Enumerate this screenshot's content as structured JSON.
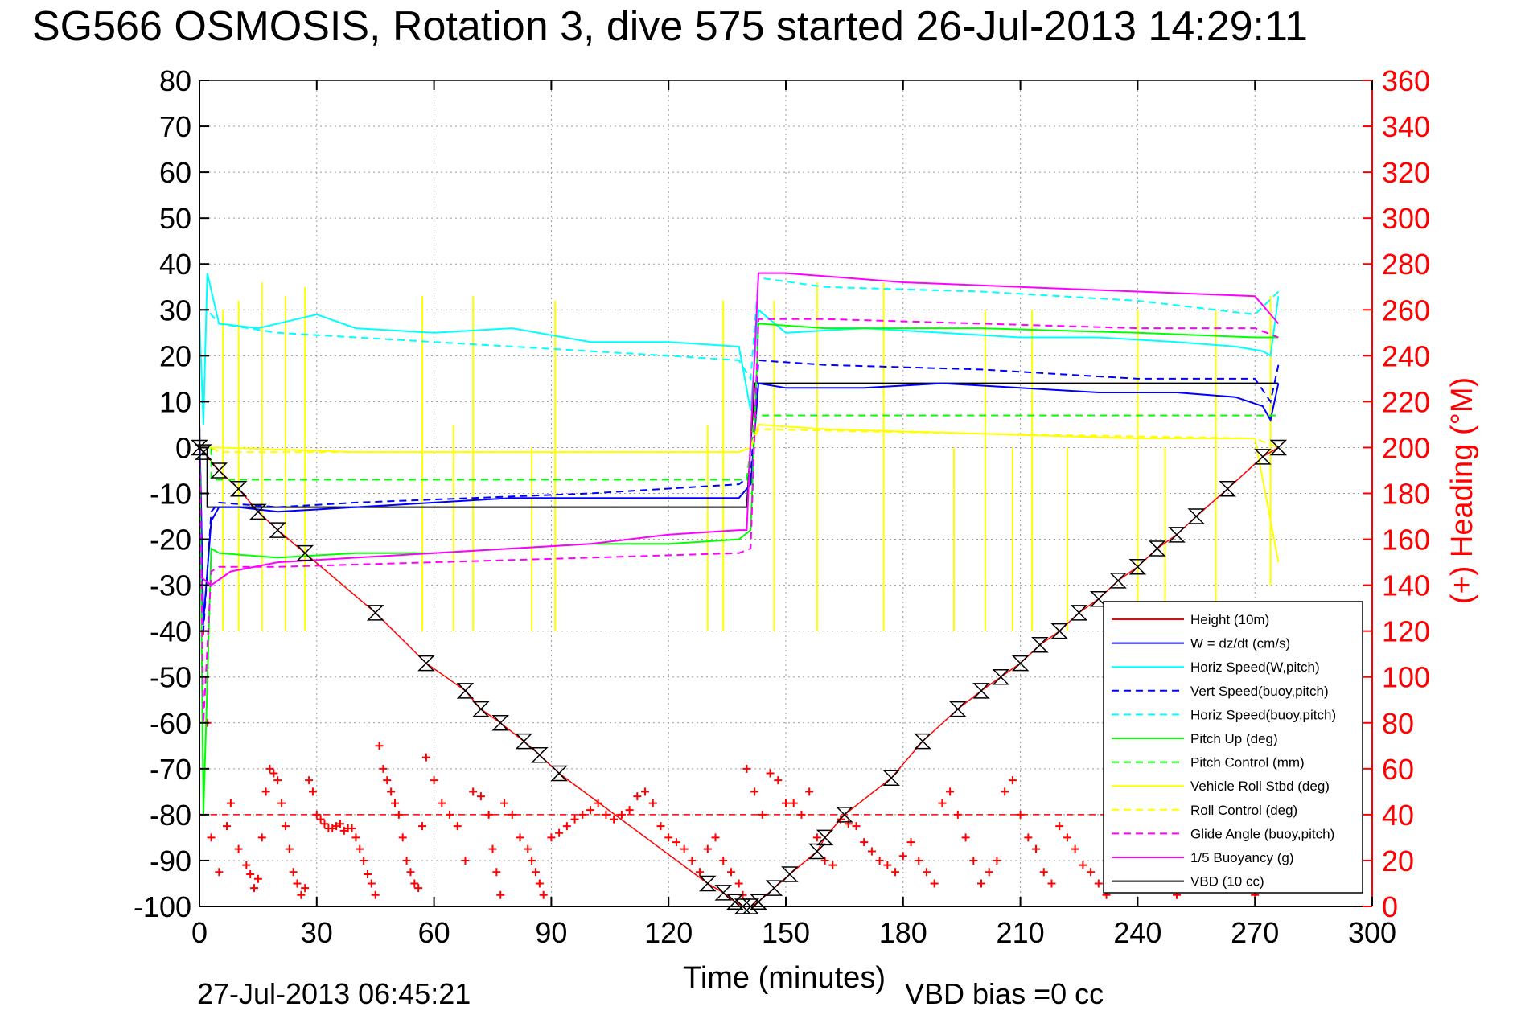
{
  "title": "SG566 OSMOSIS, Rotation 3, dive 575 started 26-Jul-2013 14:29:11",
  "footer": {
    "date": "27-Jul-2013 06:45:21",
    "vbd_bias": "VBD bias =0 cc"
  },
  "colors": {
    "height": "#ff0000",
    "w": "#0000ff",
    "horiz": "#00ffff",
    "pitch": "#00ff00",
    "roll": "#ffff00",
    "glide": "#ff00ff",
    "vbd": "#000000",
    "heading": "#ff0000"
  },
  "chart_data": {
    "type": "line",
    "xlabel": "Time (minutes)",
    "ylabel_right": "(+) Heading (°M)",
    "xlim": [
      0,
      300
    ],
    "ylim": [
      -100,
      80
    ],
    "ylim_right": [
      0,
      360
    ],
    "xticks": [
      "0",
      "30",
      "60",
      "90",
      "120",
      "150",
      "180",
      "210",
      "240",
      "270",
      "300"
    ],
    "yticks": [
      "80",
      "70",
      "60",
      "50",
      "40",
      "30",
      "20",
      "10",
      "0",
      "-10",
      "-20",
      "-30",
      "-40",
      "-50",
      "-60",
      "-70",
      "-80",
      "-90",
      "-100"
    ],
    "yticks_right": [
      "360",
      "340",
      "320",
      "300",
      "280",
      "260",
      "240",
      "220",
      "200",
      "180",
      "160",
      "140",
      "120",
      "100",
      "80",
      "60",
      "40",
      "20",
      "0"
    ],
    "grid": true,
    "legend_position": "bottom-right",
    "legend": [
      {
        "label": "Height (10m)",
        "color": "#ff0000",
        "style": "solid"
      },
      {
        "label": "W = dz/dt (cm/s)",
        "color": "#0000ff",
        "style": "solid"
      },
      {
        "label": "Horiz Speed(W,pitch)",
        "color": "#00ffff",
        "style": "solid"
      },
      {
        "label": "Vert Speed(buoy,pitch)",
        "color": "#0000ff",
        "style": "dashed"
      },
      {
        "label": "Horiz Speed(buoy,pitch)",
        "color": "#00ffff",
        "style": "dashed"
      },
      {
        "label": "Pitch Up (deg)",
        "color": "#00ff00",
        "style": "solid"
      },
      {
        "label": "Pitch Control (mm)",
        "color": "#00ff00",
        "style": "dashed"
      },
      {
        "label": "Vehicle Roll Stbd (deg)",
        "color": "#ffff00",
        "style": "solid"
      },
      {
        "label": "Roll Control (deg)",
        "color": "#ffff00",
        "style": "dashed"
      },
      {
        "label": "Glide Angle (buoy,pitch)",
        "color": "#ff00ff",
        "style": "dashed"
      },
      {
        "label": "1/5 Buoyancy (g)",
        "color": "#ff00ff",
        "style": "solid"
      },
      {
        "label": "VBD (10 cc)",
        "color": "#000000",
        "style": "solid"
      }
    ],
    "series": [
      {
        "name": "Height (10m)",
        "style": "solid",
        "x": [
          0,
          1,
          5,
          10,
          15,
          20,
          27,
          45,
          58,
          68,
          72,
          77,
          83,
          87,
          92,
          130,
          134,
          137,
          139,
          141,
          143,
          147,
          151,
          158,
          160,
          165,
          177,
          185,
          194,
          200,
          205,
          210,
          215,
          220,
          225,
          230,
          235,
          240,
          245,
          250,
          255,
          263,
          272,
          276
        ],
        "y": [
          0,
          -1,
          -5,
          -9,
          -14,
          -18,
          -23,
          -36,
          -47,
          -53,
          -57,
          -60,
          -64,
          -67,
          -71,
          -95,
          -97,
          -99,
          -100,
          -100,
          -99,
          -96,
          -93,
          -88,
          -85,
          -80,
          -72,
          -64,
          -57,
          -53,
          -50,
          -47,
          -43,
          -40,
          -36,
          -33,
          -29,
          -26,
          -22,
          -19,
          -15,
          -9,
          -2,
          0
        ]
      },
      {
        "name": "VBD (10 cc)",
        "style": "solid",
        "x": [
          0,
          2,
          2,
          140,
          140,
          142,
          142,
          276
        ],
        "y": [
          0,
          0,
          -13,
          -13,
          -13,
          14,
          14,
          14
        ]
      },
      {
        "name": "W = dz/dt (cm/s)",
        "style": "solid",
        "x": [
          0,
          1,
          3,
          5,
          10,
          20,
          40,
          60,
          80,
          100,
          120,
          138,
          141,
          143,
          150,
          170,
          190,
          210,
          230,
          250,
          265,
          272,
          274,
          276
        ],
        "y": [
          5,
          -38,
          -16,
          -13,
          -13,
          -14,
          -13,
          -12,
          -11,
          -11,
          -11,
          -11,
          -8,
          14,
          13,
          13,
          14,
          13,
          12,
          12,
          11,
          9,
          6,
          14
        ]
      },
      {
        "name": "Vert Speed(buoy,pitch)",
        "style": "dashed",
        "x": [
          0,
          1,
          3,
          5,
          20,
          40,
          70,
          100,
          138,
          141,
          143,
          160,
          200,
          240,
          270,
          274,
          276
        ],
        "y": [
          5,
          -40,
          -14,
          -12,
          -13,
          -12,
          -11,
          -10,
          -8,
          -6,
          19,
          18,
          17,
          15,
          15,
          10,
          18
        ]
      },
      {
        "name": "Horiz Speed(W,pitch)",
        "style": "solid",
        "x": [
          0,
          1,
          2,
          5,
          15,
          25,
          30,
          40,
          60,
          80,
          100,
          120,
          138,
          141,
          143,
          150,
          170,
          190,
          210,
          230,
          250,
          265,
          272,
          274,
          276
        ],
        "y": [
          28,
          5,
          38,
          27,
          26,
          28,
          29,
          26,
          25,
          26,
          23,
          23,
          22,
          8,
          30,
          25,
          26,
          25,
          24,
          24,
          23,
          22,
          21,
          20,
          33
        ]
      },
      {
        "name": "Horiz Speed(buoy,pitch)",
        "style": "dashed",
        "x": [
          0,
          2,
          5,
          20,
          40,
          60,
          80,
          100,
          120,
          138,
          141,
          143,
          160,
          200,
          240,
          270,
          276
        ],
        "y": [
          30,
          30,
          27,
          25,
          24,
          23,
          22,
          21,
          20,
          19,
          15,
          37,
          35,
          34,
          32,
          29,
          34
        ]
      },
      {
        "name": "Pitch Up (deg)",
        "style": "solid",
        "x": [
          0,
          1,
          3,
          5,
          20,
          40,
          60,
          80,
          100,
          120,
          138,
          141,
          143,
          160,
          200,
          240,
          270,
          276
        ],
        "y": [
          5,
          -80,
          -22,
          -23,
          -24,
          -23,
          -23,
          -22,
          -21,
          -21,
          -20,
          -18,
          27,
          26,
          26,
          25,
          24,
          24
        ]
      },
      {
        "name": "Pitch Control (mm)",
        "style": "dashed",
        "x": [
          0,
          3,
          3,
          140,
          140,
          142,
          142,
          276
        ],
        "y": [
          0,
          0,
          -7,
          -7,
          -7,
          7,
          7,
          7
        ]
      },
      {
        "name": "Vehicle Roll Stbd (deg)",
        "style": "solid",
        "x": [
          0,
          3,
          5,
          40,
          80,
          120,
          135,
          138,
          141,
          143,
          160,
          200,
          240,
          270,
          276
        ],
        "y": [
          0,
          0,
          0,
          -1,
          -1,
          -1,
          -1,
          -1,
          0,
          5,
          4,
          3,
          2,
          2,
          -25
        ]
      },
      {
        "name": "Roll Control (deg)",
        "style": "dashed",
        "x": [
          0,
          3,
          5,
          60,
          120,
          138,
          141,
          143,
          200,
          270,
          276
        ],
        "y": [
          0,
          0,
          -1,
          -1,
          -1,
          -1,
          0,
          4,
          3,
          2,
          0
        ]
      },
      {
        "name": "Glide Angle (buoy,pitch)",
        "style": "dashed",
        "x": [
          0,
          1,
          3,
          5,
          20,
          60,
          100,
          138,
          141,
          143,
          160,
          200,
          240,
          270,
          276
        ],
        "y": [
          5,
          -60,
          -27,
          -26,
          -26,
          -25,
          -24,
          -23,
          -22,
          28,
          28,
          27,
          26,
          26,
          24
        ]
      },
      {
        "name": "1/5 Buoyancy (g)",
        "style": "solid",
        "x": [
          0,
          3,
          8,
          20,
          40,
          60,
          80,
          100,
          120,
          138,
          140,
          141,
          143,
          150,
          180,
          210,
          240,
          270,
          276
        ],
        "y": [
          -28,
          -30,
          -27,
          -25,
          -24,
          -23,
          -22,
          -21,
          -19,
          -18,
          -18,
          2,
          38,
          38,
          36,
          35,
          34,
          33,
          27
        ]
      }
    ],
    "heading_mean": 40,
    "heading_points": {
      "x": [
        1,
        2,
        3,
        5,
        7,
        8,
        10,
        12,
        13,
        14,
        15,
        16,
        17,
        18,
        19,
        20,
        21,
        22,
        23,
        24,
        25,
        26,
        27,
        28,
        29,
        30,
        31,
        32,
        33,
        34,
        35,
        36,
        37,
        38,
        39,
        40,
        41,
        42,
        43,
        44,
        45,
        46,
        47,
        48,
        49,
        50,
        51,
        52,
        53,
        54,
        55,
        56,
        57,
        58,
        60,
        62,
        64,
        66,
        68,
        70,
        72,
        74,
        75,
        76,
        77,
        78,
        80,
        82,
        84,
        85,
        86,
        87,
        88,
        90,
        92,
        94,
        96,
        98,
        100,
        102,
        104,
        106,
        108,
        110,
        112,
        114,
        116,
        118,
        120,
        122,
        124,
        126,
        128,
        130,
        132,
        134,
        136,
        138,
        139,
        140,
        142,
        144,
        146,
        148,
        150,
        152,
        154,
        156,
        158,
        160,
        162,
        164,
        166,
        168,
        170,
        172,
        174,
        176,
        178,
        180,
        182,
        184,
        186,
        188,
        190,
        192,
        194,
        196,
        198,
        200,
        202,
        204,
        206,
        208,
        210,
        212,
        214,
        216,
        218,
        220,
        222,
        224,
        226,
        228,
        230,
        232,
        234,
        236,
        238,
        240,
        242,
        244,
        246,
        248,
        250,
        252,
        254,
        256,
        258,
        260,
        262,
        264,
        266,
        268,
        270
      ],
      "y": [
        120,
        80,
        30,
        15,
        35,
        45,
        25,
        18,
        14,
        8,
        12,
        30,
        50,
        60,
        58,
        55,
        45,
        35,
        25,
        15,
        10,
        5,
        8,
        55,
        50,
        40,
        38,
        36,
        34,
        34,
        35,
        36,
        33,
        34,
        34,
        30,
        25,
        20,
        14,
        10,
        5,
        70,
        60,
        55,
        50,
        45,
        40,
        30,
        20,
        15,
        10,
        8,
        35,
        65,
        55,
        45,
        40,
        35,
        20,
        50,
        48,
        40,
        25,
        15,
        5,
        45,
        40,
        30,
        25,
        20,
        15,
        10,
        5,
        30,
        32,
        35,
        38,
        40,
        42,
        45,
        40,
        38,
        40,
        42,
        48,
        50,
        45,
        35,
        30,
        28,
        25,
        20,
        15,
        25,
        30,
        20,
        15,
        10,
        5,
        60,
        50,
        40,
        58,
        55,
        45,
        45,
        40,
        50,
        30,
        20,
        18,
        38,
        36,
        35,
        28,
        24,
        20,
        18,
        15,
        22,
        28,
        20,
        15,
        10,
        45,
        50,
        40,
        30,
        20,
        10,
        15,
        20,
        50,
        55,
        40,
        30,
        25,
        15,
        10,
        35,
        30,
        25,
        18,
        15,
        10,
        5,
        40,
        45,
        55,
        50,
        40,
        20,
        15,
        10,
        5,
        30,
        25,
        20,
        40,
        35,
        30,
        20,
        15,
        10,
        5
      ]
    },
    "spikes": [
      {
        "x": 6,
        "y": [
          -40,
          30
        ]
      },
      {
        "x": 10,
        "y": [
          -40,
          32
        ]
      },
      {
        "x": 16,
        "y": [
          -40,
          36
        ]
      },
      {
        "x": 22,
        "y": [
          -40,
          33
        ]
      },
      {
        "x": 27,
        "y": [
          -40,
          35
        ]
      },
      {
        "x": 57,
        "y": [
          -40,
          33
        ]
      },
      {
        "x": 65,
        "y": [
          -40,
          5
        ]
      },
      {
        "x": 70,
        "y": [
          -40,
          33
        ]
      },
      {
        "x": 85,
        "y": [
          -40,
          0
        ]
      },
      {
        "x": 91,
        "y": [
          -40,
          32
        ]
      },
      {
        "x": 130,
        "y": [
          -40,
          5
        ]
      },
      {
        "x": 134,
        "y": [
          -40,
          32
        ]
      },
      {
        "x": 147,
        "y": [
          -40,
          32
        ]
      },
      {
        "x": 158,
        "y": [
          -40,
          36
        ]
      },
      {
        "x": 175,
        "y": [
          -40,
          36
        ]
      },
      {
        "x": 193,
        "y": [
          -40,
          0
        ]
      },
      {
        "x": 201,
        "y": [
          -40,
          30
        ]
      },
      {
        "x": 208,
        "y": [
          -40,
          0
        ]
      },
      {
        "x": 213,
        "y": [
          -40,
          30
        ]
      },
      {
        "x": 222,
        "y": [
          -40,
          0
        ]
      },
      {
        "x": 240,
        "y": [
          -40,
          30
        ]
      },
      {
        "x": 247,
        "y": [
          -40,
          0
        ]
      },
      {
        "x": 260,
        "y": [
          -40,
          30
        ]
      },
      {
        "x": 274,
        "y": [
          -30,
          33
        ]
      }
    ]
  }
}
